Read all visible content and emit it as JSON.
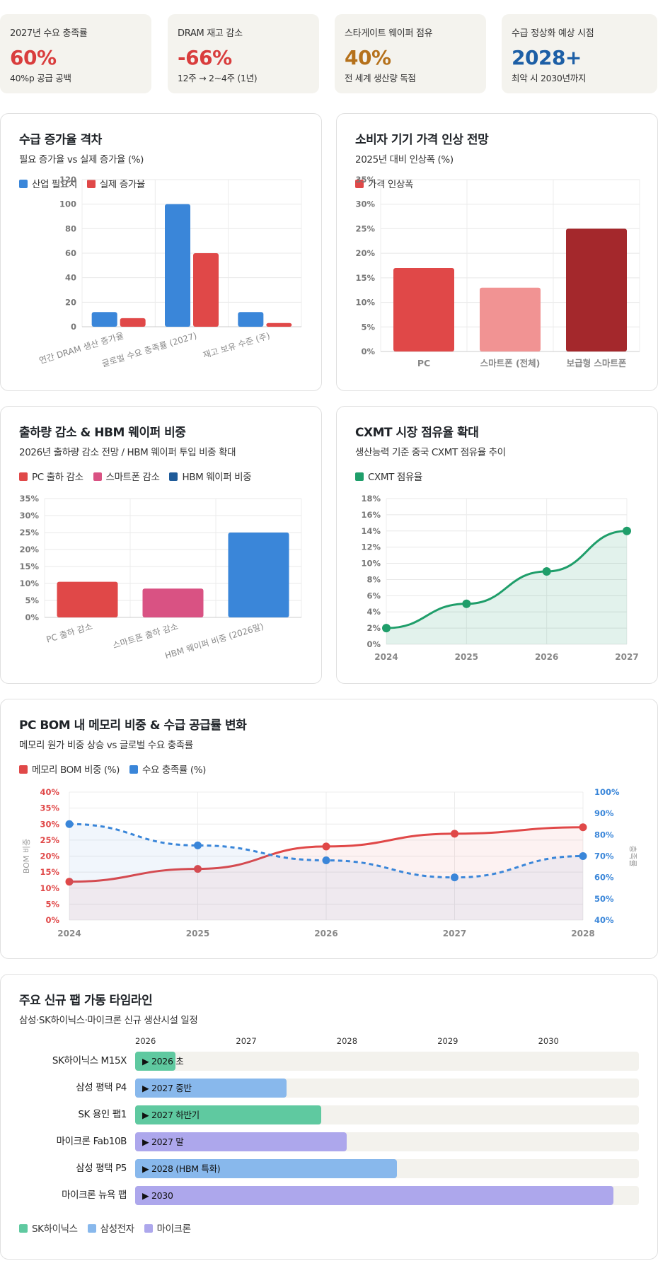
{
  "kpis": [
    {
      "label": "2027년 수요 충족률",
      "value": "60%",
      "sub": "40%p 공급 공백",
      "color": "#d93d3d"
    },
    {
      "label": "DRAM 재고 감소",
      "value": "-66%",
      "sub": "12주 → 2~4주 (1년)",
      "color": "#d93d3d"
    },
    {
      "label": "스타게이트 웨이퍼 점유",
      "value": "40%",
      "sub": "전 세계 생산량 독점",
      "color": "#b5711b"
    },
    {
      "label": "수급 정상화 예상 시점",
      "value": "2028+",
      "sub": "최악 시 2030년까지",
      "color": "#1d5fa6"
    }
  ],
  "charts": {
    "gap": {
      "title": "수급 증가율 격차",
      "subtitle": "필요 증가율 vs 실제 증가율 (%)",
      "chart_data": {
        "type": "bar",
        "categories": [
          "연간 DRAM 생산 증가율",
          "글로벌 수요 충족률 (2027)",
          "재고 보유 수준 (주)"
        ],
        "series": [
          {
            "name": "산업 필요치",
            "values": [
              12,
              100,
              12
            ],
            "color": "#3a86d9"
          },
          {
            "name": "실제 증가율",
            "values": [
              7,
              60,
              3
            ],
            "color": "#e04848"
          }
        ],
        "ylim": [
          0,
          120
        ],
        "yticks": [
          "0",
          "20",
          "40",
          "60",
          "80",
          "100",
          "120"
        ]
      }
    },
    "price": {
      "title": "소비자 기기 가격 인상 전망",
      "subtitle": "2025년 대비 인상폭 (%)",
      "chart_data": {
        "type": "bar",
        "categories": [
          "PC",
          "스마트폰 (전체)",
          "보급형 스마트폰"
        ],
        "series": [
          {
            "name": "가격 인상폭",
            "values": [
              17,
              13,
              25
            ]
          }
        ],
        "bar_colors": [
          "#e04848",
          "#f19393",
          "#a4282c"
        ],
        "legend_color": "#e04848",
        "ylim": [
          0,
          35
        ],
        "yticks": [
          "0%",
          "5%",
          "10%",
          "15%",
          "20%",
          "25%",
          "30%",
          "35%"
        ]
      }
    },
    "shipment": {
      "title": "출하량 감소 & HBM 웨이퍼 비중",
      "subtitle": "2026년 출하량 감소 전망 / HBM 웨이퍼 투입 비중 확대",
      "legend": [
        {
          "name": "PC 출하 감소",
          "color": "#e04848"
        },
        {
          "name": "스마트폰 감소",
          "color": "#d95283"
        },
        {
          "name": "HBM 웨이퍼 비중",
          "color": "#1f5b99"
        }
      ],
      "chart_data": {
        "type": "bar",
        "categories": [
          "PC 출하 감소",
          "스마트폰 출하 감소",
          "HBM 웨이퍼 비중 (2026말)"
        ],
        "values": [
          10.5,
          8.5,
          25
        ],
        "bar_colors": [
          "#e04848",
          "#d95283",
          "#3a86d9"
        ],
        "ylim": [
          0,
          35
        ],
        "yticks": [
          "0%",
          "5%",
          "10%",
          "15%",
          "20%",
          "25%",
          "30%",
          "35%"
        ]
      }
    },
    "cxmt": {
      "title": "CXMT 시장 점유율 확대",
      "subtitle": "생산능력 기준 중국 CXMT 점유율 추이",
      "chart_data": {
        "type": "area",
        "x": [
          "2024",
          "2025",
          "2026",
          "2027"
        ],
        "series": [
          {
            "name": "CXMT 점유율",
            "values": [
              2,
              5,
              9,
              14
            ],
            "color": "#1f9e6a"
          }
        ],
        "ylim": [
          0,
          18
        ],
        "yticks": [
          "0%",
          "2%",
          "4%",
          "6%",
          "8%",
          "10%",
          "12%",
          "14%",
          "16%",
          "18%"
        ]
      }
    },
    "bom": {
      "title": "PC BOM 내 메모리 비중 & 수급 공급률 변화",
      "subtitle": "메모리 원가 비중 상승 vs 글로벌 수요 충족률",
      "chart_data": {
        "type": "line",
        "x": [
          "2024",
          "2025",
          "2026",
          "2027",
          "2028"
        ],
        "series": [
          {
            "name": "메모리 BOM 비중 (%)",
            "values": [
              12,
              16,
              23,
              27,
              29
            ],
            "color": "#e04848",
            "axis": "left"
          },
          {
            "name": "수요 충족률 (%)",
            "values": [
              85,
              75,
              68,
              60,
              70
            ],
            "color": "#3a86d9",
            "axis": "right"
          }
        ],
        "ylabel_left": "BOM 비중",
        "ylabel_right": "충족률",
        "ylim_left": [
          0,
          40
        ],
        "ylim_right": [
          40,
          100
        ],
        "yticks_left": [
          "0%",
          "5%",
          "10%",
          "15%",
          "20%",
          "25%",
          "30%",
          "35%",
          "40%"
        ],
        "yticks_right": [
          "40%",
          "50%",
          "60%",
          "70%",
          "80%",
          "90%",
          "100%"
        ]
      }
    }
  },
  "timeline": {
    "title": "주요 신규 팹 가동 타임라인",
    "subtitle": "삼성·SK하이닉스·마이크론 신규 생산시설 일정",
    "years": [
      "2026",
      "2027",
      "2028",
      "2029",
      "2030"
    ],
    "rows": [
      {
        "name": "SK하이닉스 M15X",
        "label": "▶ 2026 초",
        "end": 2026.4,
        "company": 0
      },
      {
        "name": "삼성 평택 P4",
        "label": "▶ 2027 중반",
        "end": 2027.5,
        "company": 1
      },
      {
        "name": "SK 용인 팹1",
        "label": "▶ 2027 하반기",
        "end": 2027.85,
        "company": 0
      },
      {
        "name": "마이크론 Fab10B",
        "label": "▶ 2027 말",
        "end": 2028.1,
        "company": 2
      },
      {
        "name": "삼성 평택 P5",
        "label": "▶ 2028 (HBM 특화)",
        "end": 2028.6,
        "company": 1
      },
      {
        "name": "마이크론 뉴욕 팹",
        "label": "▶ 2030",
        "end": 2030.75,
        "company": 2
      }
    ],
    "legend": [
      {
        "name": "SK하이닉스",
        "color": "#5fc9a0"
      },
      {
        "name": "삼성전자",
        "color": "#88b8ec"
      },
      {
        "name": "마이크론",
        "color": "#ada7ec"
      }
    ]
  }
}
